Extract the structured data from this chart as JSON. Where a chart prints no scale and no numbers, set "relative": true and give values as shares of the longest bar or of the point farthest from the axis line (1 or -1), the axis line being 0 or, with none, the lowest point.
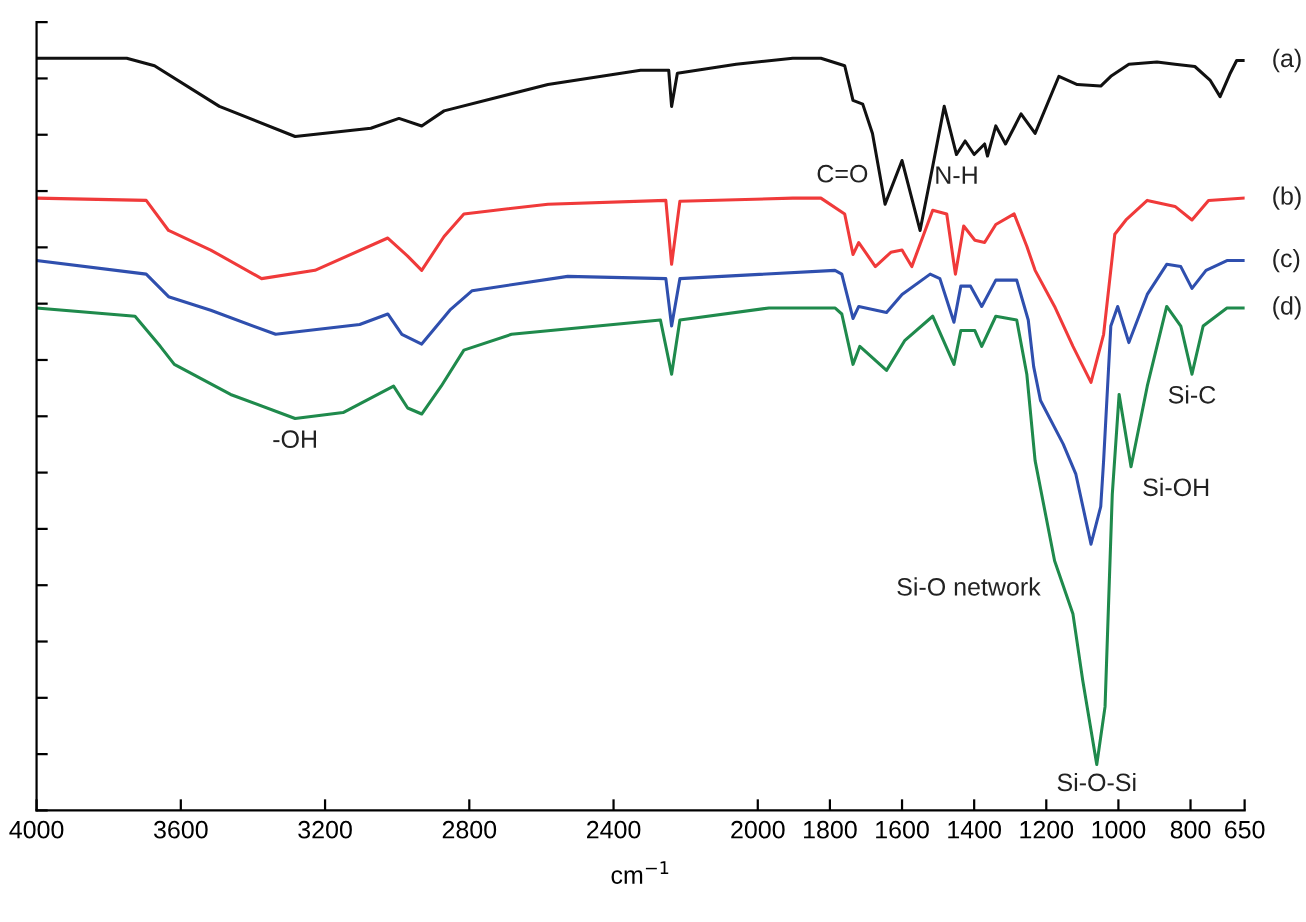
{
  "chart_data": {
    "type": "line",
    "relative": true,
    "xlabel": "cm$^{−1}$",
    "xlim": [
      4000,
      650
    ],
    "xticks": [
      4000,
      3600,
      3200,
      2800,
      2400,
      2000,
      1800,
      1600,
      1400,
      1200,
      1000,
      800,
      650
    ],
    "tick_labels": "x",
    "grid": false,
    "legend": false,
    "marker": "none",
    "line_style": "solid",
    "series": [
      {
        "name": "(a)",
        "color": "#111111",
        "x": [
          4000,
          3750,
          3673,
          3493,
          3283,
          3073,
          2995,
          2932,
          2870,
          2582,
          2325,
          2247,
          2239,
          2223,
          2060,
          1903,
          1825,
          1759,
          1736,
          1709,
          1682,
          1647,
          1600,
          1550,
          1515,
          1483,
          1449,
          1425,
          1400,
          1371,
          1363,
          1340,
          1313,
          1270,
          1231,
          1165,
          1114,
          1049,
          1021,
          971,
          893,
          843,
          788,
          746,
          718,
          691,
          672,
          652
        ],
        "values": [
          1.0,
          1.0,
          0.99,
          0.936,
          0.896,
          0.907,
          0.92,
          0.91,
          0.93,
          0.965,
          0.984,
          0.984,
          0.936,
          0.98,
          0.992,
          1.0,
          1.0,
          0.99,
          0.944,
          0.939,
          0.9,
          0.806,
          0.864,
          0.771,
          0.856,
          0.936,
          0.872,
          0.89,
          0.872,
          0.886,
          0.87,
          0.91,
          0.886,
          0.926,
          0.9,
          0.976,
          0.965,
          0.963,
          0.976,
          0.992,
          0.995,
          0.992,
          0.989,
          0.971,
          0.949,
          0.979,
          0.997,
          0.997
        ]
      },
      {
        "name": "(b)",
        "color": "#f03a3a",
        "x": [
          4000,
          3696,
          3634,
          3517,
          3376,
          3228,
          3026,
          2971,
          2932,
          2870,
          2815,
          2582,
          2255,
          2239,
          2216,
          1903,
          1825,
          1759,
          1736,
          1720,
          1674,
          1631,
          1600,
          1573,
          1515,
          1476,
          1452,
          1429,
          1398,
          1371,
          1340,
          1289,
          1254,
          1231,
          1177,
          1126,
          1076,
          1041,
          1010,
          979,
          920,
          843,
          796,
          750,
          652
        ],
        "values": [
          0.814,
          0.811,
          0.771,
          0.745,
          0.707,
          0.718,
          0.761,
          0.737,
          0.718,
          0.763,
          0.793,
          0.806,
          0.811,
          0.726,
          0.81,
          0.814,
          0.814,
          0.793,
          0.739,
          0.755,
          0.723,
          0.742,
          0.745,
          0.723,
          0.798,
          0.793,
          0.713,
          0.777,
          0.758,
          0.755,
          0.779,
          0.793,
          0.75,
          0.718,
          0.67,
          0.617,
          0.569,
          0.633,
          0.766,
          0.785,
          0.811,
          0.803,
          0.785,
          0.811,
          0.814
        ]
      },
      {
        "name": "(c)",
        "color": "#2f4fae",
        "x": [
          4000,
          3696,
          3634,
          3517,
          3337,
          3104,
          3026,
          2987,
          2932,
          2854,
          2792,
          2527,
          2255,
          2239,
          2216,
          1786,
          1767,
          1736,
          1720,
          1643,
          1600,
          1522,
          1495,
          1456,
          1437,
          1410,
          1379,
          1340,
          1282,
          1250,
          1235,
          1216,
          1153,
          1118,
          1076,
          1049,
          1041,
          1021,
          1002,
          971,
          920,
          866,
          827,
          796,
          757,
          699,
          652
        ],
        "values": [
          0.731,
          0.713,
          0.683,
          0.665,
          0.633,
          0.646,
          0.66,
          0.633,
          0.62,
          0.665,
          0.691,
          0.71,
          0.707,
          0.644,
          0.707,
          0.718,
          0.713,
          0.654,
          0.67,
          0.662,
          0.686,
          0.713,
          0.707,
          0.649,
          0.697,
          0.697,
          0.67,
          0.705,
          0.705,
          0.652,
          0.59,
          0.545,
          0.487,
          0.447,
          0.354,
          0.404,
          0.465,
          0.644,
          0.67,
          0.622,
          0.686,
          0.726,
          0.723,
          0.694,
          0.718,
          0.731,
          0.731
        ]
      },
      {
        "name": "(d)",
        "color": "#1f8a4c",
        "x": [
          4000,
          3727,
          3657,
          3618,
          3462,
          3283,
          3150,
          3010,
          2971,
          2932,
          2878,
          2815,
          2683,
          2270,
          2239,
          2216,
          1969,
          1786,
          1767,
          1736,
          1717,
          1643,
          1592,
          1515,
          1456,
          1437,
          1398,
          1379,
          1340,
          1282,
          1254,
          1231,
          1177,
          1126,
          1099,
          1060,
          1037,
          1017,
          998,
          965,
          920,
          866,
          827,
          796,
          765,
          699,
          652
        ],
        "values": [
          0.668,
          0.657,
          0.617,
          0.593,
          0.553,
          0.521,
          0.529,
          0.564,
          0.535,
          0.527,
          0.564,
          0.612,
          0.633,
          0.652,
          0.58,
          0.652,
          0.668,
          0.668,
          0.66,
          0.593,
          0.617,
          0.585,
          0.625,
          0.657,
          0.593,
          0.638,
          0.638,
          0.617,
          0.657,
          0.652,
          0.58,
          0.465,
          0.332,
          0.261,
          0.173,
          0.061,
          0.138,
          0.42,
          0.553,
          0.457,
          0.564,
          0.67,
          0.644,
          0.58,
          0.644,
          0.668,
          0.668
        ]
      }
    ],
    "annotations": [
      {
        "text": "C=O",
        "x": 1647,
        "y": 0.806
      },
      {
        "text": "N-H",
        "x": 1449,
        "y": 0.872
      },
      {
        "text": "-OH",
        "x": 3283,
        "y": 0.521
      },
      {
        "text": "Si-O network",
        "x": 1177,
        "y": 0.332
      },
      {
        "text": "Si-O-Si",
        "x": 1060,
        "y": 0.061
      },
      {
        "text": "Si-OH",
        "x": 965,
        "y": 0.457
      },
      {
        "text": "Si-C",
        "x": 796,
        "y": 0.58
      }
    ]
  }
}
